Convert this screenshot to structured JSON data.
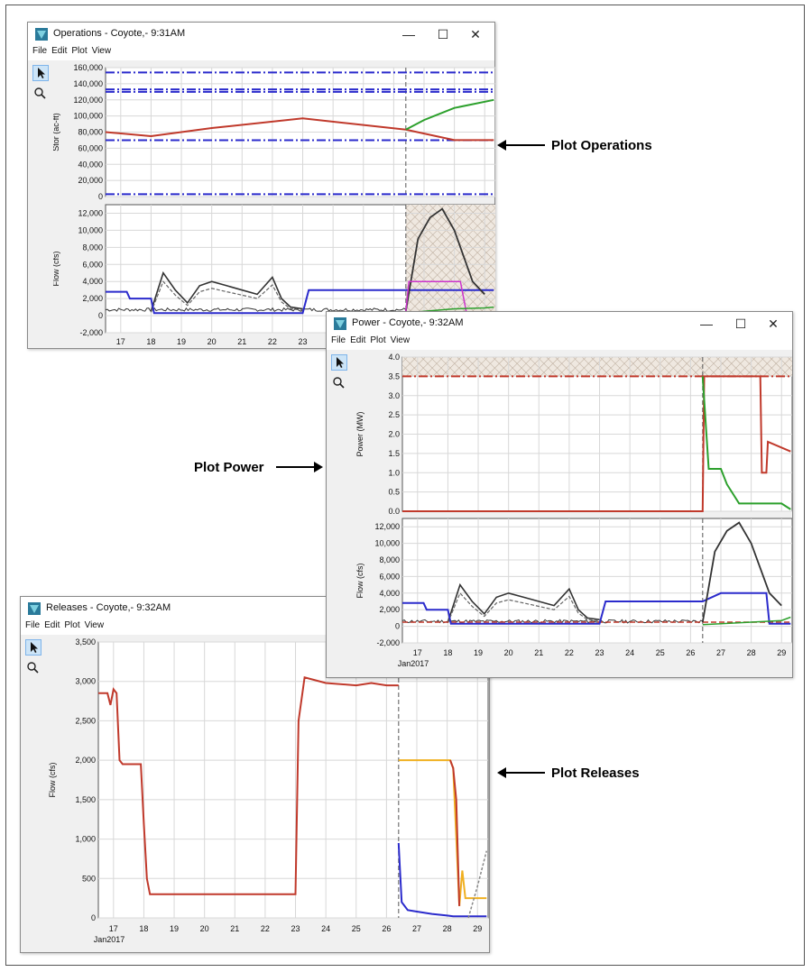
{
  "menus": [
    "File",
    "Edit",
    "Plot",
    "View"
  ],
  "controls": {
    "minimize": "—",
    "maximize": "☐",
    "close": "✕"
  },
  "colors": {
    "red": "#c0392b",
    "green": "#2ca02c",
    "blue": "#2b2bcc",
    "dark": "#333333",
    "orange": "#f0b020",
    "magenta": "#cc33cc",
    "hatch": "#b8a898"
  },
  "days": [
    "17",
    "18",
    "19",
    "20",
    "21",
    "22",
    "23",
    "24",
    "25",
    "26",
    "27",
    "28",
    "29"
  ],
  "month_label": "Jan2017",
  "windows": {
    "operations": {
      "title": "Operations - Coyote,- 9:31AM",
      "stor_ylabel": "Stor (ac-ft)",
      "stor_ticks": [
        "160,000",
        "140,000",
        "120,000",
        "100,000",
        "80,000",
        "60,000",
        "40,000",
        "20,000",
        "0"
      ],
      "flow_ylabel": "Flow (cfs)",
      "flow_ticks": [
        "12,000",
        "10,000",
        "8,000",
        "6,000",
        "4,000",
        "2,000",
        "0",
        "-2,000"
      ]
    },
    "power": {
      "title": "Power - Coyote,- 9:32AM",
      "power_ylabel": "Power (MW)",
      "power_ticks": [
        "4.0",
        "3.5",
        "3.0",
        "2.5",
        "2.0",
        "1.5",
        "1.0",
        "0.5",
        "0.0"
      ],
      "flow_ylabel": "Flow (cfs)",
      "flow_ticks": [
        "12,000",
        "10,000",
        "8,000",
        "6,000",
        "4,000",
        "2,000",
        "0",
        "-2,000"
      ]
    },
    "releases": {
      "title": "Releases - Coyote,- 9:32AM",
      "flow_ylabel": "Flow (cfs)",
      "flow_ticks": [
        "3,500",
        "3,000",
        "2,500",
        "2,000",
        "1,500",
        "1,000",
        "500",
        "0"
      ]
    }
  },
  "annotations": {
    "operations": "Plot Operations",
    "power": "Plot Power",
    "releases": "Plot Releases"
  },
  "chart_data": [
    {
      "type": "line",
      "title": "",
      "ylabel": "Stor (ac-ft)",
      "ylim": [
        0,
        160000
      ],
      "x_range": [
        "Jan 17 2017",
        "Jan 29 2017"
      ],
      "series": [
        {
          "values_note": "",
          "x": [
            16.5,
            18,
            20,
            23,
            26.4,
            28,
            29.3
          ],
          "values": [
            80000,
            75000,
            85000,
            97000,
            83000,
            70000,
            70000
          ]
        },
        {
          "x": [
            26.4,
            27,
            28,
            29.3
          ],
          "values": [
            83000,
            95000,
            110000,
            120000
          ]
        }
      ],
      "horizontal_lines": [
        154000,
        133000,
        130000,
        70000,
        3000
      ]
    },
    {
      "type": "line",
      "ylabel": "Flow (cfs)",
      "ylim": [
        -2000,
        13000
      ],
      "series": [
        {
          "x": [
            16.5,
            17.2,
            17.3,
            18,
            18.1,
            23,
            23.2,
            26.4,
            28.5,
            29.3
          ],
          "values": [
            2800,
            2800,
            2000,
            2000,
            300,
            300,
            3000,
            3000,
            3000,
            3000
          ]
        },
        {
          "x": [
            18,
            18.4,
            18.8,
            19.2,
            19.6,
            20,
            20.5,
            21,
            21.5,
            22,
            22.3,
            22.6,
            23
          ],
          "values": [
            500,
            5000,
            3000,
            1500,
            3500,
            4000,
            3500,
            3000,
            2500,
            4500,
            2000,
            1000,
            800
          ]
        },
        {
          "x": [
            26.4,
            26.8,
            27.2,
            27.6,
            28,
            28.3,
            28.6,
            29
          ],
          "values": [
            500,
            9000,
            11500,
            12500,
            10000,
            7000,
            4000,
            2500
          ]
        }
      ]
    },
    {
      "type": "line",
      "ylabel": "Power (MW)",
      "ylim": [
        0,
        4.0
      ],
      "series": [
        {
          "x": [
            16.5,
            26.4,
            26.45,
            28.3,
            28.35,
            28.5,
            28.55,
            29.3
          ],
          "values": [
            0,
            0,
            3.5,
            3.5,
            1.0,
            1.0,
            1.8,
            1.55
          ]
        },
        {
          "x": [
            26.4,
            26.6,
            27,
            27.2,
            27.6,
            28,
            29,
            29.3
          ],
          "values": [
            3.5,
            1.1,
            1.1,
            0.7,
            0.2,
            0.2,
            0.2,
            0.05
          ]
        }
      ],
      "horizontal_lines": [
        3.5
      ]
    },
    {
      "type": "line",
      "ylabel": "Flow (cfs)",
      "ylim": [
        -2000,
        13000
      ],
      "series": [
        {
          "x": [
            16.5,
            17.2,
            17.3,
            18,
            18.1,
            23,
            23.2,
            26.4,
            27,
            28.5,
            28.6,
            29.3
          ],
          "values": [
            2800,
            2800,
            2000,
            2000,
            300,
            300,
            3000,
            3000,
            4000,
            4000,
            300,
            300
          ]
        },
        {
          "x": [
            18,
            18.4,
            18.8,
            19.2,
            19.6,
            20,
            20.5,
            21,
            21.5,
            22,
            22.3,
            22.6,
            23
          ],
          "values": [
            500,
            5000,
            3000,
            1500,
            3500,
            4000,
            3500,
            3000,
            2500,
            4500,
            2000,
            1000,
            800
          ]
        },
        {
          "x": [
            26.4,
            26.8,
            27.2,
            27.6,
            28,
            28.3,
            28.6,
            29
          ],
          "values": [
            500,
            9000,
            11500,
            12500,
            10000,
            7000,
            4000,
            2500
          ]
        }
      ]
    },
    {
      "type": "line",
      "ylabel": "Flow (cfs)",
      "ylim": [
        0,
        3500
      ],
      "series": [
        {
          "x": [
            16.5,
            16.8,
            16.9,
            17,
            17.1,
            17.2,
            17.3,
            17.9,
            18,
            18.1,
            18.2,
            23,
            23.1,
            23.3,
            24,
            25,
            25.5,
            26,
            26.4
          ],
          "values": [
            2850,
            2850,
            2700,
            2900,
            2850,
            2000,
            1950,
            1950,
            1200,
            500,
            300,
            300,
            2500,
            3050,
            2980,
            2950,
            2980,
            2950,
            2950
          ]
        },
        {
          "x": [
            26.4,
            26.5,
            26.7,
            27,
            27.5,
            28,
            28.2,
            29.3
          ],
          "values": [
            950,
            200,
            100,
            80,
            50,
            30,
            20,
            20
          ]
        },
        {
          "x": [
            26.4,
            28.1,
            28.2,
            28.4,
            28.5,
            28.6,
            28.7,
            29.3
          ],
          "values": [
            2000,
            2000,
            1900,
            150,
            600,
            250,
            250,
            250
          ]
        },
        {
          "x": [
            28.7,
            29,
            29.3
          ],
          "values": [
            0,
            400,
            850
          ]
        }
      ]
    }
  ]
}
